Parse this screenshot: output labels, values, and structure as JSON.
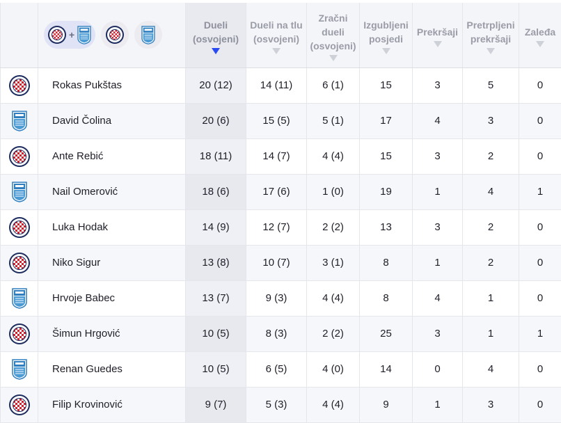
{
  "header": {
    "filter_combo_label": "+",
    "columns": [
      "Dueli (osvojeni)",
      "Dueli na tlu (osvojeni)",
      "Zračni dueli (osvojeni)",
      "Izgubljeni posjedi",
      "Prekršaji",
      "Pretrpljeni prekršaji",
      "Zaleđa"
    ],
    "sorted_column_index": 0
  },
  "icons": {
    "team_a": "hajduk-crest-icon",
    "team_b": "shield-crest-icon",
    "sort": "sort-arrow-icon"
  },
  "colors": {
    "sort_active": "#2a4bf2",
    "sort_inactive": "#cfd1d8",
    "filter_active_bg": "#dfe3f5",
    "hajduk_red": "#d2202d",
    "hajduk_navy": "#1d2c5f",
    "shield_blue": "#2f7fc0"
  },
  "players": [
    {
      "team": "hajduk",
      "name": "Rokas Pukštas",
      "duels": "20 (12)",
      "ground": "14 (11)",
      "aerial": "6 (1)",
      "lost": "15",
      "fouls": "3",
      "fouled": "5",
      "offsides": "0"
    },
    {
      "team": "shield",
      "name": "David Čolina",
      "duels": "20 (6)",
      "ground": "15 (5)",
      "aerial": "5 (1)",
      "lost": "17",
      "fouls": "4",
      "fouled": "3",
      "offsides": "0"
    },
    {
      "team": "hajduk",
      "name": "Ante Rebić",
      "duels": "18 (11)",
      "ground": "14 (7)",
      "aerial": "4 (4)",
      "lost": "15",
      "fouls": "3",
      "fouled": "2",
      "offsides": "0"
    },
    {
      "team": "shield",
      "name": "Nail Omerović",
      "duels": "18 (6)",
      "ground": "17 (6)",
      "aerial": "1 (0)",
      "lost": "19",
      "fouls": "1",
      "fouled": "4",
      "offsides": "1"
    },
    {
      "team": "hajduk",
      "name": "Luka Hodak",
      "duels": "14 (9)",
      "ground": "12 (7)",
      "aerial": "2 (2)",
      "lost": "13",
      "fouls": "3",
      "fouled": "2",
      "offsides": "0"
    },
    {
      "team": "hajduk",
      "name": "Niko Sigur",
      "duels": "13 (8)",
      "ground": "10 (7)",
      "aerial": "3 (1)",
      "lost": "8",
      "fouls": "1",
      "fouled": "2",
      "offsides": "0"
    },
    {
      "team": "shield",
      "name": "Hrvoje Babec",
      "duels": "13 (7)",
      "ground": "9 (3)",
      "aerial": "4 (4)",
      "lost": "8",
      "fouls": "4",
      "fouled": "1",
      "offsides": "0"
    },
    {
      "team": "hajduk",
      "name": "Šimun Hrgović",
      "duels": "10 (5)",
      "ground": "8 (3)",
      "aerial": "2 (2)",
      "lost": "25",
      "fouls": "3",
      "fouled": "1",
      "offsides": "1"
    },
    {
      "team": "shield",
      "name": "Renan Guedes",
      "duels": "10 (5)",
      "ground": "6 (5)",
      "aerial": "4 (0)",
      "lost": "14",
      "fouls": "0",
      "fouled": "4",
      "offsides": "0"
    },
    {
      "team": "hajduk",
      "name": "Filip Krovinović",
      "duels": "9 (7)",
      "ground": "5 (3)",
      "aerial": "4 (4)",
      "lost": "9",
      "fouls": "1",
      "fouled": "3",
      "offsides": "0"
    }
  ]
}
